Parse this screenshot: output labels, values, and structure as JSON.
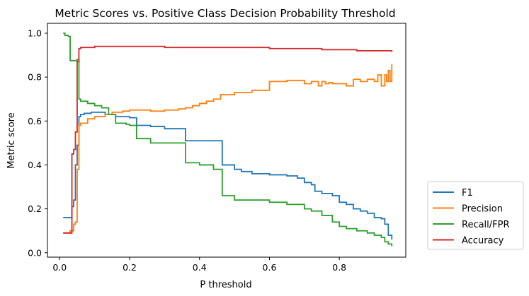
{
  "chart_data": {
    "type": "line",
    "title": "Metric Scores vs. Positive Class Decision Probability Threshold",
    "xlabel": "P threshold",
    "ylabel": "Metric score",
    "xlim": [
      -0.035,
      0.99
    ],
    "ylim": [
      -0.02,
      1.045
    ],
    "xticks": [
      "0.0",
      "0.2",
      "0.4",
      "0.6",
      "0.8"
    ],
    "yticks": [
      "0.0",
      "0.2",
      "0.4",
      "0.6",
      "0.8",
      "1.0"
    ],
    "grid": false,
    "legend_position": "outside-right-bottom",
    "series": [
      {
        "name": "F1",
        "color": "#1f77b4",
        "x": [
          0.01,
          0.03,
          0.035,
          0.04,
          0.045,
          0.05,
          0.055,
          0.06,
          0.07,
          0.09,
          0.1,
          0.13,
          0.16,
          0.2,
          0.22,
          0.26,
          0.3,
          0.36,
          0.36,
          0.4,
          0.44,
          0.465,
          0.465,
          0.5,
          0.52,
          0.55,
          0.6,
          0.65,
          0.68,
          0.7,
          0.72,
          0.73,
          0.75,
          0.78,
          0.8,
          0.82,
          0.84,
          0.86,
          0.88,
          0.9,
          0.92,
          0.93,
          0.94,
          0.95
        ],
        "y": [
          0.16,
          0.16,
          0.21,
          0.24,
          0.4,
          0.49,
          0.62,
          0.63,
          0.635,
          0.64,
          0.64,
          0.63,
          0.62,
          0.615,
          0.58,
          0.575,
          0.565,
          0.565,
          0.51,
          0.51,
          0.51,
          0.51,
          0.4,
          0.38,
          0.37,
          0.36,
          0.355,
          0.35,
          0.34,
          0.32,
          0.31,
          0.28,
          0.27,
          0.26,
          0.23,
          0.22,
          0.2,
          0.19,
          0.18,
          0.16,
          0.155,
          0.13,
          0.08,
          0.06
        ]
      },
      {
        "name": "Precision",
        "color": "#ff7f0e",
        "x": [
          0.01,
          0.03,
          0.04,
          0.045,
          0.05,
          0.055,
          0.06,
          0.08,
          0.1,
          0.13,
          0.15,
          0.18,
          0.2,
          0.22,
          0.26,
          0.3,
          0.34,
          0.36,
          0.38,
          0.4,
          0.42,
          0.44,
          0.46,
          0.5,
          0.55,
          0.6,
          0.6,
          0.65,
          0.7,
          0.72,
          0.74,
          0.75,
          0.76,
          0.77,
          0.78,
          0.8,
          0.82,
          0.84,
          0.86,
          0.88,
          0.9,
          0.91,
          0.92,
          0.93,
          0.935,
          0.94,
          0.945,
          0.95
        ],
        "y": [
          0.09,
          0.1,
          0.13,
          0.14,
          0.38,
          0.58,
          0.59,
          0.61,
          0.62,
          0.63,
          0.64,
          0.645,
          0.65,
          0.65,
          0.645,
          0.65,
          0.655,
          0.66,
          0.67,
          0.68,
          0.69,
          0.7,
          0.72,
          0.73,
          0.74,
          0.74,
          0.78,
          0.785,
          0.77,
          0.78,
          0.76,
          0.78,
          0.77,
          0.775,
          0.77,
          0.77,
          0.76,
          0.79,
          0.78,
          0.79,
          0.78,
          0.81,
          0.76,
          0.81,
          0.78,
          0.83,
          0.78,
          0.86
        ]
      },
      {
        "name": "Recall/FPR",
        "color": "#2ca02c",
        "x": [
          0.01,
          0.015,
          0.025,
          0.03,
          0.035,
          0.045,
          0.05,
          0.055,
          0.06,
          0.08,
          0.1,
          0.12,
          0.14,
          0.16,
          0.19,
          0.2,
          0.22,
          0.26,
          0.3,
          0.36,
          0.36,
          0.4,
          0.44,
          0.465,
          0.465,
          0.5,
          0.6,
          0.65,
          0.7,
          0.72,
          0.75,
          0.78,
          0.8,
          0.82,
          0.85,
          0.88,
          0.9,
          0.92,
          0.93,
          0.94,
          0.95
        ],
        "y": [
          1.0,
          0.99,
          0.985,
          0.875,
          0.875,
          0.875,
          0.88,
          0.7,
          0.69,
          0.68,
          0.67,
          0.66,
          0.63,
          0.59,
          0.585,
          0.58,
          0.52,
          0.5,
          0.5,
          0.5,
          0.41,
          0.4,
          0.38,
          0.37,
          0.26,
          0.24,
          0.23,
          0.22,
          0.2,
          0.19,
          0.17,
          0.14,
          0.12,
          0.11,
          0.1,
          0.09,
          0.08,
          0.07,
          0.05,
          0.04,
          0.03
        ]
      },
      {
        "name": "Accuracy",
        "color": "#d62728",
        "x": [
          0.01,
          0.03,
          0.035,
          0.04,
          0.045,
          0.05,
          0.055,
          0.06,
          0.1,
          0.2,
          0.3,
          0.45,
          0.6,
          0.75,
          0.85,
          0.95
        ],
        "y": [
          0.09,
          0.09,
          0.45,
          0.47,
          0.55,
          0.87,
          0.93,
          0.935,
          0.94,
          0.94,
          0.935,
          0.935,
          0.93,
          0.925,
          0.92,
          0.915
        ]
      }
    ]
  }
}
